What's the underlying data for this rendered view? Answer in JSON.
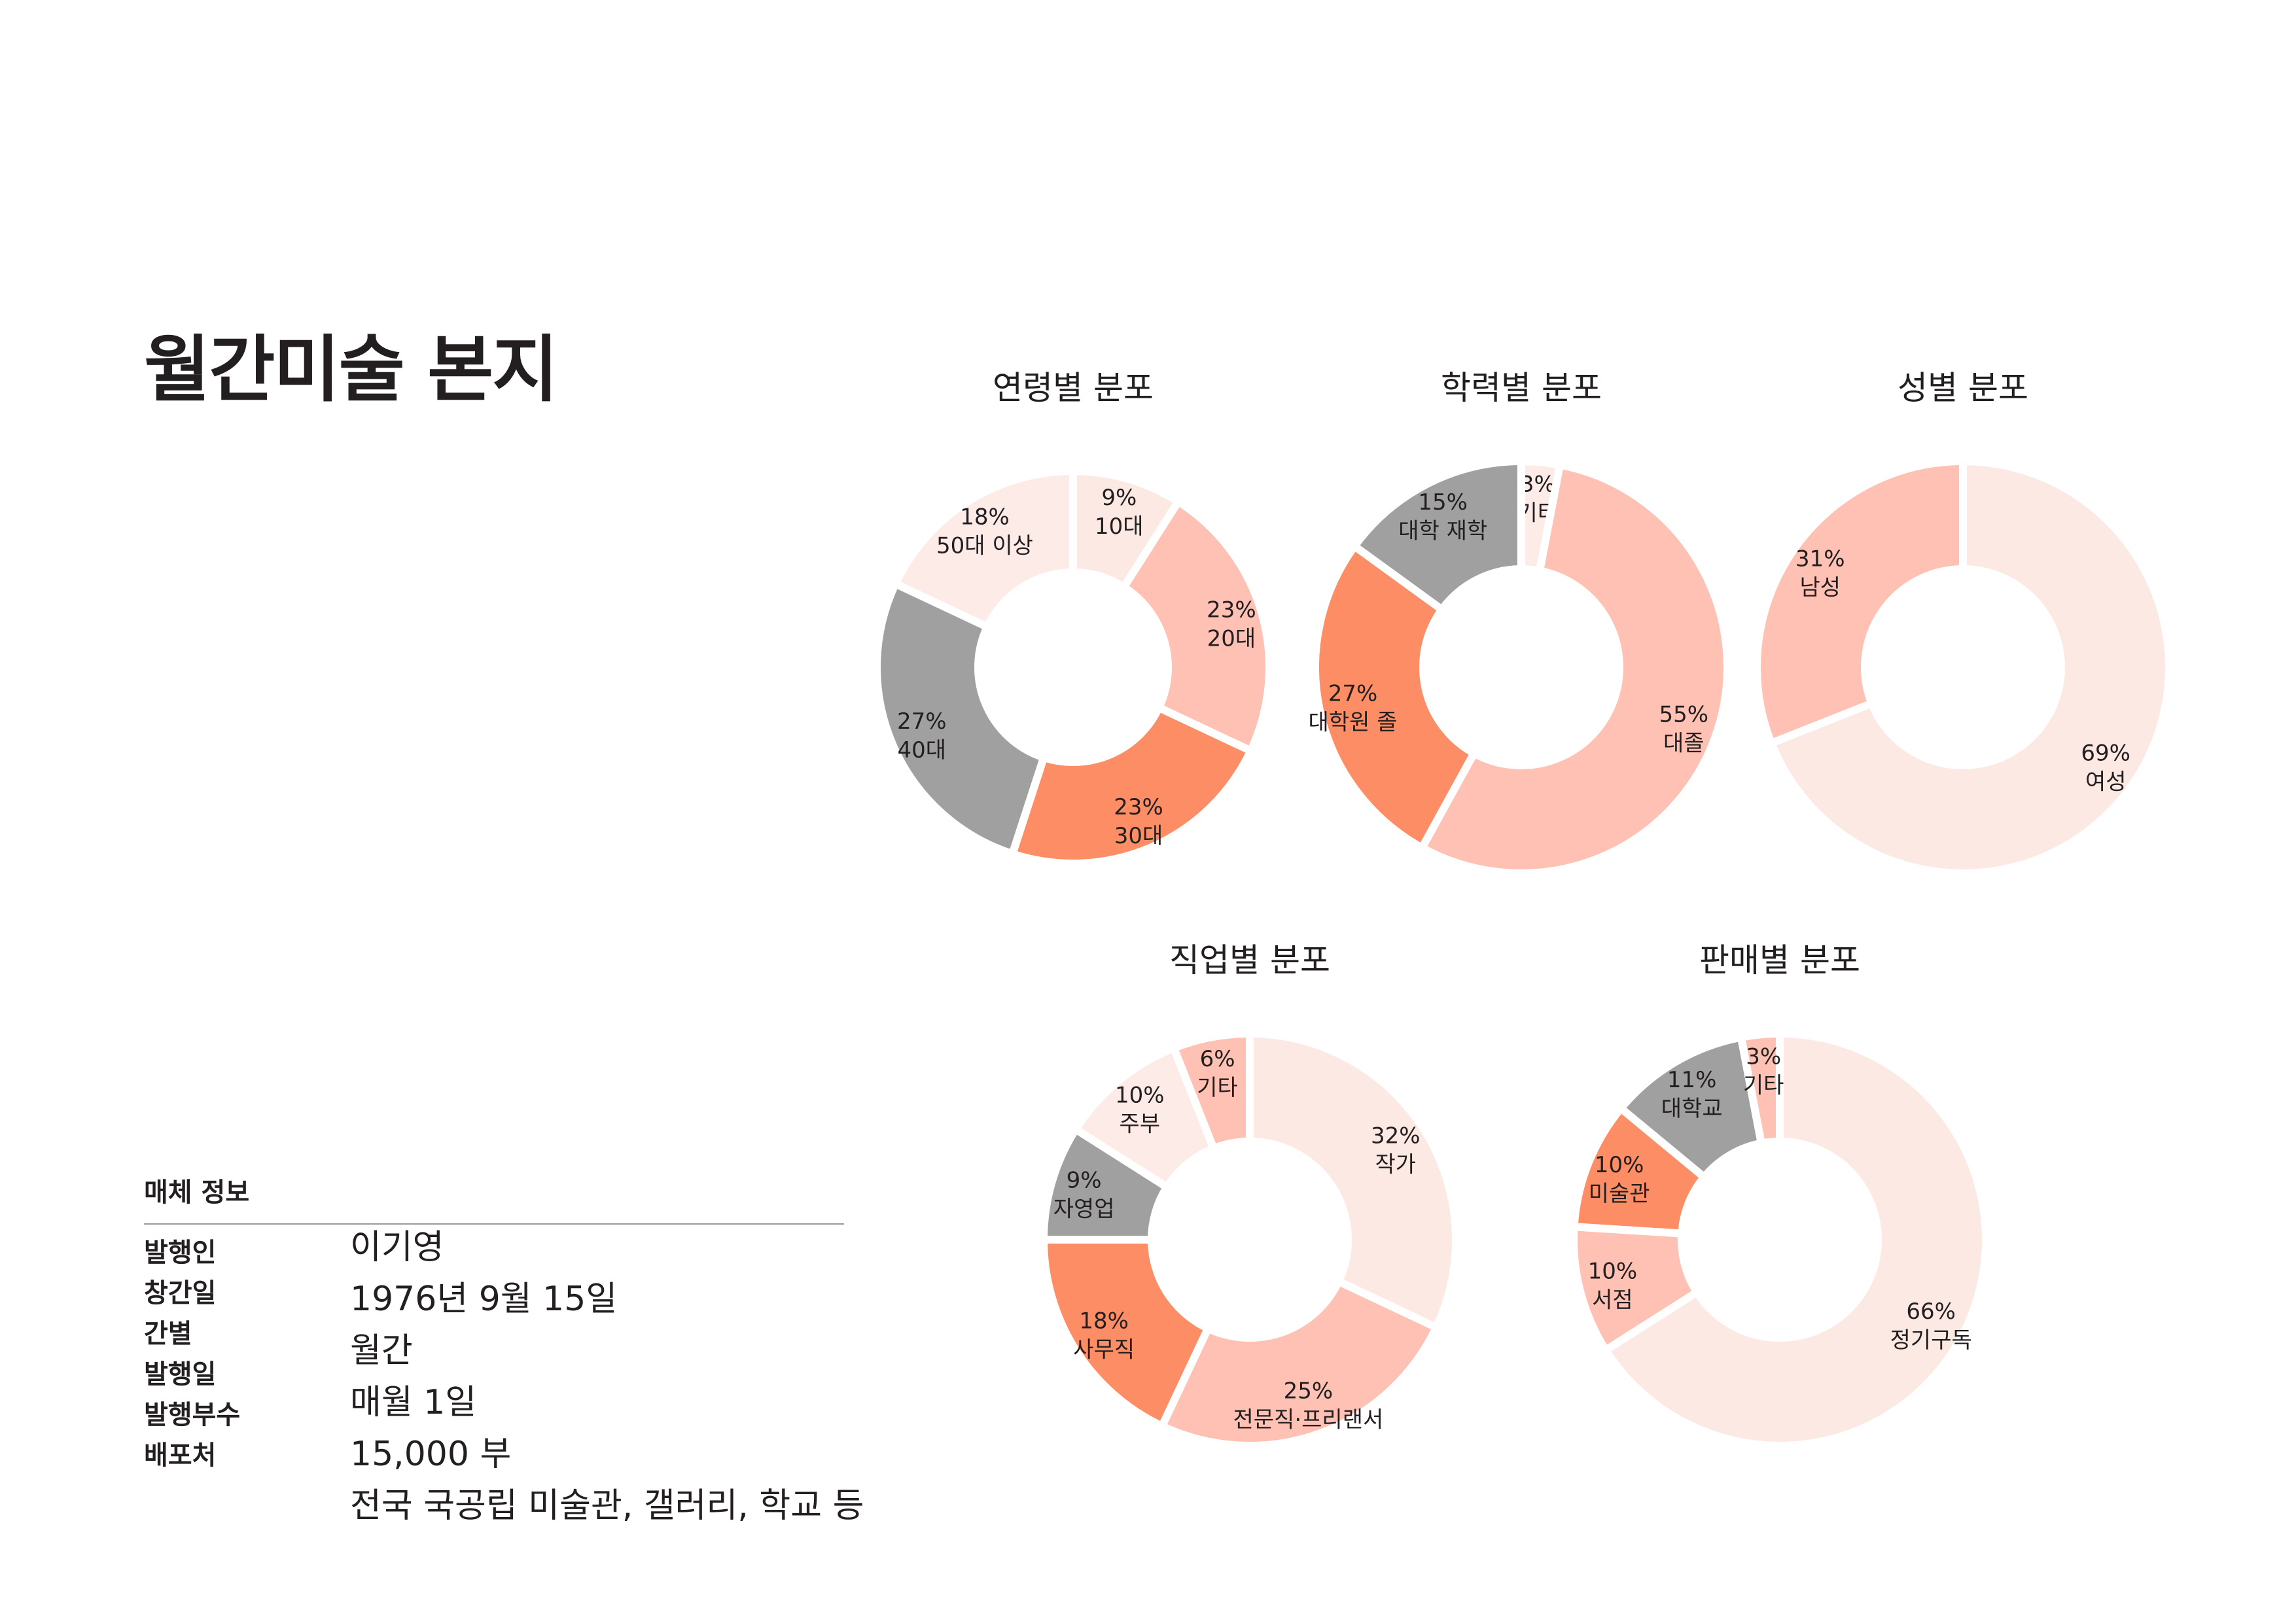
{
  "page": {
    "title": "월간미술 본지"
  },
  "media_info": {
    "heading": "매체 정보",
    "labels": [
      "발행인",
      "창간일",
      "간별",
      "발행일",
      "발행부수",
      "배포처"
    ],
    "values": [
      "이기영",
      "1976년 9월 15일",
      "월간",
      "매월 1일",
      "15,000 부",
      "전국 국공립 미술관, 갤러리, 학교 등"
    ]
  },
  "colors": {
    "lightest": "#fde9e3",
    "pinkish": "#fdebe8",
    "salmon_light": "#fec1b4",
    "salmon": "#fd8d64",
    "gray": "#a0a0a0"
  },
  "chart_data": [
    {
      "type": "pie",
      "donut": true,
      "title": "연령별 분포",
      "slices": [
        {
          "label": "10대",
          "value": 9,
          "color": "#fde9e3"
        },
        {
          "label": "20대",
          "value": 23,
          "color": "#fec1b4"
        },
        {
          "label": "30대",
          "value": 23,
          "color": "#fd8d64"
        },
        {
          "label": "40대",
          "value": 27,
          "color": "#a0a0a0"
        },
        {
          "label": "50대 이상",
          "value": 18,
          "color": "#fdebe8"
        }
      ]
    },
    {
      "type": "pie",
      "donut": true,
      "title": "학력별 분포",
      "slices": [
        {
          "label": "기타",
          "value": 3,
          "color": "#fdebe8"
        },
        {
          "label": "대졸",
          "value": 55,
          "color": "#fec1b4"
        },
        {
          "label": "대학원 졸",
          "value": 27,
          "color": "#fd8d64"
        },
        {
          "label": "대학 재학",
          "value": 15,
          "color": "#a0a0a0"
        }
      ]
    },
    {
      "type": "pie",
      "donut": true,
      "title": "성별 분포",
      "slices": [
        {
          "label": "여성",
          "value": 69,
          "color": "#fde9e3"
        },
        {
          "label": "남성",
          "value": 31,
          "color": "#fec1b4"
        }
      ]
    },
    {
      "type": "pie",
      "donut": true,
      "title": "직업별 분포",
      "slices": [
        {
          "label": "작가",
          "value": 32,
          "color": "#fde9e3"
        },
        {
          "label": "전문직·프리랜서",
          "value": 25,
          "color": "#fec1b4"
        },
        {
          "label": "사무직",
          "value": 18,
          "color": "#fd8d64"
        },
        {
          "label": "자영업",
          "value": 9,
          "color": "#a0a0a0"
        },
        {
          "label": "주부",
          "value": 10,
          "color": "#fdebe8"
        },
        {
          "label": "기타",
          "value": 6,
          "color": "#fec1b4"
        }
      ]
    },
    {
      "type": "pie",
      "donut": true,
      "title": "판매별 분포",
      "slices": [
        {
          "label": "정기구독",
          "value": 66,
          "color": "#fde9e3"
        },
        {
          "label": "서점",
          "value": 10,
          "color": "#fec1b4"
        },
        {
          "label": "미술관",
          "value": 10,
          "color": "#fd8d64"
        },
        {
          "label": "대학교",
          "value": 11,
          "color": "#a0a0a0"
        },
        {
          "label": "기타",
          "value": 3,
          "color": "#fec1b4"
        }
      ]
    }
  ]
}
